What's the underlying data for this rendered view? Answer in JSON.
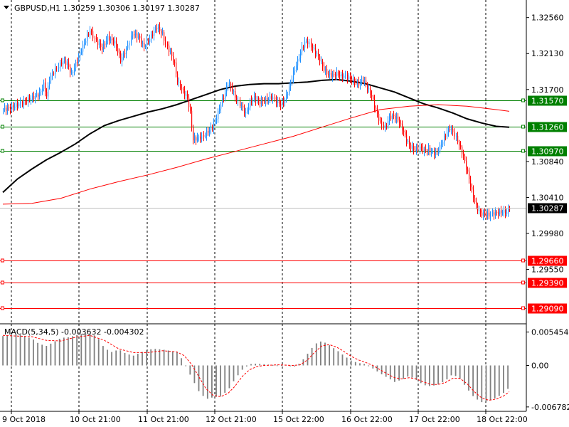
{
  "header": {
    "symbol_info": "GBPUSD,H1  1.30259 1.30306 1.30197 1.30287"
  },
  "chart_data": {
    "type": "candlestick",
    "symbol": "GBPUSD",
    "timeframe": "H1",
    "ohlc_header": {
      "open": 1.30259,
      "high": 1.30306,
      "low": 1.30197,
      "close": 1.30287
    },
    "price_axis": {
      "ylim": [
        1.289,
        1.3277
      ],
      "ticks": [
        "1.32560",
        "1.32130",
        "1.31700",
        "1.30840",
        "1.30410",
        "1.29980",
        "1.29550"
      ]
    },
    "time_axis": {
      "labels": [
        "9 Oct 2018",
        "10 Oct 21:00",
        "11 Oct 21:00",
        "12 Oct 21:00",
        "15 Oct 22:00",
        "16 Oct 22:00",
        "17 Oct 22:00",
        "18 Oct 22:00"
      ]
    },
    "current_price": {
      "label": "1.30287",
      "value": 1.30287
    },
    "horizontal_levels": [
      {
        "label": "1.31570",
        "value": 1.3157,
        "color": "#008000"
      },
      {
        "label": "1.31260",
        "value": 1.3126,
        "color": "#008000"
      },
      {
        "label": "1.30970",
        "value": 1.3097,
        "color": "#008000"
      },
      {
        "label": "1.29660",
        "value": 1.2966,
        "color": "#ff0000"
      },
      {
        "label": "1.29390",
        "value": 1.2939,
        "color": "#ff0000"
      },
      {
        "label": "1.29090",
        "value": 1.2909,
        "color": "#ff0000"
      }
    ],
    "price_path": [
      [
        0,
        1.3146
      ],
      [
        5,
        1.3148
      ],
      [
        10,
        1.3152
      ],
      [
        15,
        1.3156
      ],
      [
        20,
        1.316
      ],
      [
        25,
        1.3165
      ],
      [
        28,
        1.3176
      ],
      [
        30,
        1.3162
      ],
      [
        32,
        1.3183
      ],
      [
        37,
        1.3196
      ],
      [
        41,
        1.3204
      ],
      [
        44,
        1.3201
      ],
      [
        47,
        1.3188
      ],
      [
        51,
        1.3205
      ],
      [
        55,
        1.3222
      ],
      [
        60,
        1.3241
      ],
      [
        63,
        1.323
      ],
      [
        68,
        1.3219
      ],
      [
        72,
        1.3232
      ],
      [
        77,
        1.3226
      ],
      [
        81,
        1.3205
      ],
      [
        85,
        1.3218
      ],
      [
        89,
        1.3237
      ],
      [
        93,
        1.3233
      ],
      [
        97,
        1.3221
      ],
      [
        101,
        1.3231
      ],
      [
        106,
        1.3245
      ],
      [
        110,
        1.3236
      ],
      [
        112,
        1.3224
      ],
      [
        115,
        1.3214
      ],
      [
        118,
        1.32
      ],
      [
        120,
        1.318
      ],
      [
        123,
        1.317
      ],
      [
        127,
        1.316
      ],
      [
        129,
        1.3142
      ],
      [
        131,
        1.311
      ],
      [
        134,
        1.3112
      ],
      [
        138,
        1.3114
      ],
      [
        141,
        1.312
      ],
      [
        144,
        1.3125
      ],
      [
        147,
        1.3137
      ],
      [
        150,
        1.3153
      ],
      [
        153,
        1.3166
      ],
      [
        155,
        1.3178
      ],
      [
        158,
        1.317
      ],
      [
        161,
        1.3157
      ],
      [
        164,
        1.315
      ],
      [
        167,
        1.3141
      ],
      [
        170,
        1.3155
      ],
      [
        173,
        1.316
      ],
      [
        176,
        1.3155
      ],
      [
        179,
        1.3156
      ],
      [
        182,
        1.3158
      ],
      [
        185,
        1.3161
      ],
      [
        188,
        1.3156
      ],
      [
        191,
        1.3152
      ],
      [
        194,
        1.3158
      ],
      [
        197,
        1.3172
      ],
      [
        200,
        1.319
      ],
      [
        203,
        1.3204
      ],
      [
        206,
        1.322
      ],
      [
        209,
        1.3228
      ],
      [
        212,
        1.3222
      ],
      [
        215,
        1.3215
      ],
      [
        218,
        1.3206
      ],
      [
        221,
        1.3194
      ],
      [
        224,
        1.3188
      ],
      [
        227,
        1.3187
      ],
      [
        230,
        1.3189
      ],
      [
        233,
        1.3186
      ],
      [
        236,
        1.3186
      ],
      [
        239,
        1.3183
      ],
      [
        242,
        1.3179
      ],
      [
        245,
        1.3177
      ],
      [
        248,
        1.3182
      ],
      [
        251,
        1.3172
      ],
      [
        254,
        1.3162
      ],
      [
        257,
        1.3145
      ],
      [
        260,
        1.313
      ],
      [
        263,
        1.3124
      ],
      [
        266,
        1.3137
      ],
      [
        269,
        1.3138
      ],
      [
        272,
        1.3134
      ],
      [
        275,
        1.3123
      ],
      [
        278,
        1.311
      ],
      [
        281,
        1.3101
      ],
      [
        284,
        1.3098
      ],
      [
        287,
        1.3101
      ],
      [
        290,
        1.3097
      ],
      [
        293,
        1.3098
      ],
      [
        296,
        1.3094
      ],
      [
        299,
        1.3095
      ],
      [
        302,
        1.3105
      ],
      [
        305,
        1.3116
      ],
      [
        308,
        1.3124
      ],
      [
        311,
        1.3116
      ],
      [
        314,
        1.3104
      ],
      [
        317,
        1.309
      ],
      [
        320,
        1.307
      ],
      [
        323,
        1.3048
      ],
      [
        326,
        1.303
      ],
      [
        329,
        1.3022
      ],
      [
        332,
        1.3021
      ],
      [
        335,
        1.302
      ],
      [
        338,
        1.3022
      ],
      [
        341,
        1.3023
      ],
      [
        344,
        1.3024
      ],
      [
        347,
        1.3023
      ],
      [
        349,
        1.3029
      ]
    ],
    "moving_averages": [
      {
        "color": "#000000",
        "points": [
          [
            0,
            1.3047
          ],
          [
            10,
            1.3063
          ],
          [
            20,
            1.3075
          ],
          [
            30,
            1.3086
          ],
          [
            40,
            1.3095
          ],
          [
            50,
            1.3105
          ],
          [
            60,
            1.3117
          ],
          [
            70,
            1.3127
          ],
          [
            80,
            1.3133
          ],
          [
            90,
            1.3138
          ],
          [
            100,
            1.3143
          ],
          [
            110,
            1.3147
          ],
          [
            120,
            1.3152
          ],
          [
            130,
            1.3158
          ],
          [
            140,
            1.3164
          ],
          [
            150,
            1.317
          ],
          [
            160,
            1.3174
          ],
          [
            170,
            1.3176
          ],
          [
            180,
            1.3177
          ],
          [
            190,
            1.3177
          ],
          [
            200,
            1.3178
          ],
          [
            210,
            1.3179
          ],
          [
            220,
            1.3181
          ],
          [
            230,
            1.3182
          ],
          [
            240,
            1.318
          ],
          [
            250,
            1.3177
          ],
          [
            260,
            1.3172
          ],
          [
            270,
            1.3167
          ],
          [
            280,
            1.316
          ],
          [
            290,
            1.3153
          ],
          [
            300,
            1.3148
          ],
          [
            310,
            1.3142
          ],
          [
            320,
            1.3135
          ],
          [
            330,
            1.313
          ],
          [
            340,
            1.3126
          ],
          [
            349,
            1.3125
          ]
        ]
      },
      {
        "color": "#ff0000",
        "points": [
          [
            0,
            1.3033
          ],
          [
            20,
            1.3034
          ],
          [
            40,
            1.304
          ],
          [
            60,
            1.3051
          ],
          [
            80,
            1.306
          ],
          [
            100,
            1.3068
          ],
          [
            120,
            1.3077
          ],
          [
            140,
            1.3087
          ],
          [
            160,
            1.3096
          ],
          [
            180,
            1.3105
          ],
          [
            200,
            1.3114
          ],
          [
            220,
            1.3125
          ],
          [
            240,
            1.3136
          ],
          [
            260,
            1.3146
          ],
          [
            280,
            1.315
          ],
          [
            300,
            1.3152
          ],
          [
            320,
            1.315
          ],
          [
            340,
            1.3146
          ],
          [
            349,
            1.3144
          ]
        ]
      }
    ],
    "macd": {
      "label": "MACD(5,34,5) -0.003632 -0.004302",
      "params": [
        5,
        34,
        5
      ],
      "main": -0.003632,
      "signal": -0.004302,
      "ylim": [
        -0.0075,
        0.0068
      ],
      "ticks": [
        "0.005454",
        "0.00",
        "-0.006782"
      ],
      "histogram": [
        [
          0,
          0.0048
        ],
        [
          10,
          0.0051
        ],
        [
          20,
          0.0044
        ],
        [
          25,
          0.0035
        ],
        [
          30,
          0.0032
        ],
        [
          35,
          0.0038
        ],
        [
          40,
          0.0045
        ],
        [
          45,
          0.0046
        ],
        [
          50,
          0.0049
        ],
        [
          55,
          0.0052
        ],
        [
          60,
          0.0052
        ],
        [
          65,
          0.0047
        ],
        [
          70,
          0.0028
        ],
        [
          75,
          0.0022
        ],
        [
          80,
          0.0026
        ],
        [
          85,
          0.0019
        ],
        [
          90,
          0.0016
        ],
        [
          95,
          0.0021
        ],
        [
          100,
          0.0026
        ],
        [
          105,
          0.0027
        ],
        [
          110,
          0.0026
        ],
        [
          115,
          0.0024
        ],
        [
          120,
          0.0022
        ],
        [
          125,
          0.0005
        ],
        [
          130,
          -0.002
        ],
        [
          135,
          -0.0042
        ],
        [
          140,
          -0.0055
        ],
        [
          145,
          -0.0052
        ],
        [
          150,
          -0.005
        ],
        [
          155,
          -0.0041
        ],
        [
          160,
          -0.0022
        ],
        [
          165,
          -0.0007
        ],
        [
          170,
          0.0002
        ],
        [
          175,
          0.0003
        ],
        [
          180,
          0.0002
        ],
        [
          185,
          0.0001
        ],
        [
          190,
          0.0
        ],
        [
          195,
          0.0001
        ],
        [
          200,
          -0.0003
        ],
        [
          205,
          0.0004
        ],
        [
          210,
          0.0019
        ],
        [
          215,
          0.0035
        ],
        [
          220,
          0.004
        ],
        [
          225,
          0.0033
        ],
        [
          230,
          0.0025
        ],
        [
          235,
          0.0016
        ],
        [
          240,
          0.0008
        ],
        [
          245,
          0.0004
        ],
        [
          250,
          0.0002
        ],
        [
          255,
          -0.0005
        ],
        [
          260,
          -0.0013
        ],
        [
          265,
          -0.002
        ],
        [
          270,
          -0.0027
        ],
        [
          275,
          -0.0023
        ],
        [
          280,
          -0.0017
        ],
        [
          285,
          -0.0024
        ],
        [
          290,
          -0.0032
        ],
        [
          295,
          -0.0034
        ],
        [
          300,
          -0.0031
        ],
        [
          305,
          -0.0025
        ],
        [
          310,
          -0.0014
        ],
        [
          315,
          -0.0022
        ],
        [
          320,
          -0.0038
        ],
        [
          325,
          -0.0053
        ],
        [
          330,
          -0.006
        ],
        [
          335,
          -0.0058
        ],
        [
          340,
          -0.0053
        ],
        [
          345,
          -0.0045
        ],
        [
          349,
          -0.0036
        ]
      ],
      "signal_line": [
        [
          0,
          0.0049
        ],
        [
          10,
          0.0048
        ],
        [
          20,
          0.0047
        ],
        [
          30,
          0.0041
        ],
        [
          40,
          0.004
        ],
        [
          50,
          0.0046
        ],
        [
          60,
          0.0049
        ],
        [
          70,
          0.0041
        ],
        [
          80,
          0.0027
        ],
        [
          90,
          0.0021
        ],
        [
          100,
          0.0021
        ],
        [
          110,
          0.0024
        ],
        [
          120,
          0.0022
        ],
        [
          125,
          0.0016
        ],
        [
          130,
          0.0002
        ],
        [
          135,
          -0.0018
        ],
        [
          140,
          -0.0038
        ],
        [
          145,
          -0.0049
        ],
        [
          150,
          -0.0051
        ],
        [
          155,
          -0.0046
        ],
        [
          160,
          -0.0034
        ],
        [
          165,
          -0.0018
        ],
        [
          170,
          -0.0007
        ],
        [
          175,
          -0.0002
        ],
        [
          180,
          0.0
        ],
        [
          190,
          0.0001
        ],
        [
          200,
          0.0
        ],
        [
          205,
          0.0001
        ],
        [
          210,
          0.0009
        ],
        [
          215,
          0.0022
        ],
        [
          220,
          0.0032
        ],
        [
          225,
          0.0034
        ],
        [
          230,
          0.003
        ],
        [
          235,
          0.0023
        ],
        [
          240,
          0.0015
        ],
        [
          245,
          0.0009
        ],
        [
          250,
          0.0005
        ],
        [
          255,
          0.0
        ],
        [
          260,
          -0.0007
        ],
        [
          265,
          -0.0014
        ],
        [
          270,
          -0.002
        ],
        [
          275,
          -0.0022
        ],
        [
          280,
          -0.002
        ],
        [
          285,
          -0.0022
        ],
        [
          290,
          -0.0027
        ],
        [
          295,
          -0.0031
        ],
        [
          300,
          -0.0031
        ],
        [
          305,
          -0.0028
        ],
        [
          310,
          -0.0021
        ],
        [
          315,
          -0.0021
        ],
        [
          320,
          -0.003
        ],
        [
          325,
          -0.0043
        ],
        [
          330,
          -0.0053
        ],
        [
          335,
          -0.0057
        ],
        [
          340,
          -0.0055
        ],
        [
          345,
          -0.005
        ],
        [
          349,
          -0.0043
        ]
      ]
    }
  },
  "colors": {
    "bull_candle": "#1e90ff",
    "bear_candle": "#ff0000",
    "current_price_tag_bg": "#000000",
    "histogram": "#808080",
    "grid": "#000000"
  }
}
